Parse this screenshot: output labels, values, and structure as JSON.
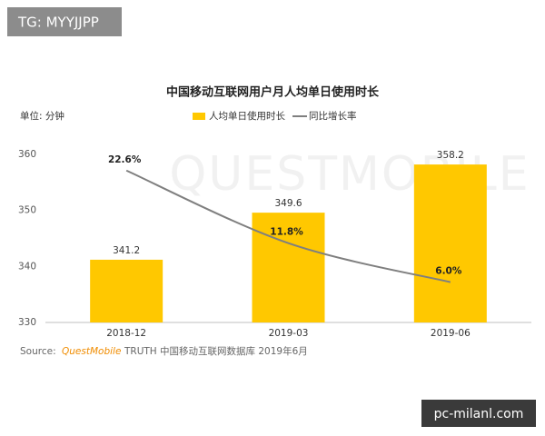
{
  "tag": "TG: MYYJJPP",
  "watermark": "QUESTMOBILE",
  "footer_site": "pc-milanl.com",
  "chart_data": {
    "type": "combo",
    "title": "中国移动互联网用户月人均单日使用时长",
    "unit_label": "单位: 分钟",
    "categories": [
      "2018-12",
      "2019-03",
      "2019-06"
    ],
    "series": [
      {
        "name": "人均单日使用时长",
        "type": "bar",
        "color": "#ffc800",
        "values": [
          341.2,
          349.6,
          358.2
        ]
      },
      {
        "name": "同比增长率",
        "type": "line",
        "axis": "y2",
        "color": "#7f7f7f",
        "values": [
          22.6,
          11.8,
          6.0
        ],
        "value_labels": [
          "22.6%",
          "11.8%",
          "6.0%"
        ]
      }
    ],
    "ylim": [
      330,
      360
    ],
    "yticks": [
      330,
      340,
      350,
      360
    ],
    "y2lim": [
      0,
      25
    ],
    "grid": false,
    "source": {
      "prefix": "Source:",
      "brand": "QuestMobile",
      "text": "TRUTH 中国移动互联网数据库 2019年6月"
    }
  }
}
